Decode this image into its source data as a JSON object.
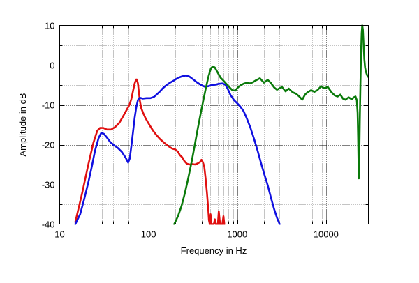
{
  "chart_data": {
    "type": "line",
    "title": "",
    "xlabel": "Frequency in Hz",
    "ylabel": "Amplitude in dB",
    "xscale": "log",
    "xlim": [
      10,
      30000
    ],
    "ylim": [
      -40,
      10
    ],
    "x_ticks": [
      10,
      100,
      1000,
      10000
    ],
    "x_tick_labels": [
      "10",
      "100",
      "1000",
      "10000"
    ],
    "y_ticks": [
      -40,
      -30,
      -20,
      -10,
      0,
      10
    ],
    "y_tick_labels": [
      "-40",
      "-30",
      "-20",
      "-10",
      "0",
      "10"
    ],
    "grid": true,
    "legend": "none",
    "series": [
      {
        "color": "#e01010",
        "points": [
          [
            15,
            -39.5
          ],
          [
            18,
            -32
          ],
          [
            21,
            -25
          ],
          [
            24,
            -19.5
          ],
          [
            26.5,
            -16.5
          ],
          [
            28.5,
            -15.8
          ],
          [
            31,
            -15.8
          ],
          [
            34,
            -16.2
          ],
          [
            38,
            -16.2
          ],
          [
            42,
            -15.6
          ],
          [
            47,
            -14.5
          ],
          [
            52,
            -12.8
          ],
          [
            57,
            -11.2
          ],
          [
            61,
            -10
          ],
          [
            64,
            -8.6
          ],
          [
            67,
            -6.5
          ],
          [
            70,
            -4.6
          ],
          [
            72.5,
            -3.6
          ],
          [
            74,
            -3.6
          ],
          [
            76,
            -4.6
          ],
          [
            78,
            -6.8
          ],
          [
            80,
            -9
          ],
          [
            83,
            -10.8
          ],
          [
            87,
            -12
          ],
          [
            92,
            -13.2
          ],
          [
            98,
            -14.3
          ],
          [
            105,
            -15.4
          ],
          [
            112,
            -16.4
          ],
          [
            122,
            -17.5
          ],
          [
            135,
            -18.6
          ],
          [
            150,
            -19.5
          ],
          [
            168,
            -20.4
          ],
          [
            185,
            -21
          ],
          [
            200,
            -21.2
          ],
          [
            215,
            -21.8
          ],
          [
            225,
            -22.6
          ],
          [
            240,
            -23.2
          ],
          [
            255,
            -24.2
          ],
          [
            270,
            -24.8
          ],
          [
            290,
            -25
          ],
          [
            310,
            -24.9
          ],
          [
            335,
            -25
          ],
          [
            360,
            -24.7
          ],
          [
            380,
            -24.4
          ],
          [
            395,
            -23.8
          ],
          [
            410,
            -24.4
          ],
          [
            425,
            -25.5
          ],
          [
            440,
            -28.5
          ],
          [
            455,
            -32
          ],
          [
            470,
            -36
          ],
          [
            480,
            -39
          ],
          [
            490,
            -40
          ],
          [
            500,
            -37.5
          ],
          [
            510,
            -40
          ],
          [
            545,
            -40
          ],
          [
            560,
            -38.8
          ],
          [
            575,
            -40
          ],
          [
            605,
            -40
          ],
          [
            620,
            -36.8
          ],
          [
            640,
            -40
          ],
          [
            680,
            -40
          ],
          [
            700,
            -38
          ],
          [
            715,
            -40
          ]
        ]
      },
      {
        "color": "#1010e0",
        "points": [
          [
            15,
            -40
          ],
          [
            17,
            -37.5
          ],
          [
            19,
            -33.5
          ],
          [
            21,
            -29.5
          ],
          [
            23,
            -25.5
          ],
          [
            25,
            -21.5
          ],
          [
            27.5,
            -18.3
          ],
          [
            29.5,
            -17
          ],
          [
            31.5,
            -17.3
          ],
          [
            34,
            -18.2
          ],
          [
            37,
            -19.3
          ],
          [
            41,
            -20.2
          ],
          [
            45,
            -20.8
          ],
          [
            50,
            -21.8
          ],
          [
            55,
            -23.2
          ],
          [
            59,
            -24.5
          ],
          [
            61.5,
            -23.5
          ],
          [
            64,
            -20.5
          ],
          [
            67,
            -16.8
          ],
          [
            70,
            -13.2
          ],
          [
            73,
            -10.5
          ],
          [
            76,
            -8.8
          ],
          [
            80,
            -8.2
          ],
          [
            86,
            -8.4
          ],
          [
            95,
            -8.3
          ],
          [
            105,
            -8.3
          ],
          [
            115,
            -8
          ],
          [
            125,
            -7.3
          ],
          [
            135,
            -6.6
          ],
          [
            145,
            -5.8
          ],
          [
            160,
            -5
          ],
          [
            175,
            -4.4
          ],
          [
            195,
            -3.8
          ],
          [
            215,
            -3.2
          ],
          [
            240,
            -2.8
          ],
          [
            265,
            -2.6
          ],
          [
            290,
            -2.9
          ],
          [
            320,
            -3.6
          ],
          [
            350,
            -4.3
          ],
          [
            390,
            -5
          ],
          [
            430,
            -5.4
          ],
          [
            470,
            -5.3
          ],
          [
            520,
            -5
          ],
          [
            570,
            -4.9
          ],
          [
            620,
            -4.7
          ],
          [
            680,
            -4.6
          ],
          [
            730,
            -4.9
          ],
          [
            780,
            -5.9
          ],
          [
            840,
            -7.5
          ],
          [
            920,
            -8.8
          ],
          [
            1000,
            -9.6
          ],
          [
            1080,
            -10.4
          ],
          [
            1180,
            -11.6
          ],
          [
            1280,
            -13.4
          ],
          [
            1400,
            -15.6
          ],
          [
            1550,
            -18.6
          ],
          [
            1700,
            -21.6
          ],
          [
            1850,
            -24.6
          ],
          [
            2000,
            -27.2
          ],
          [
            2200,
            -30.2
          ],
          [
            2400,
            -33.4
          ],
          [
            2600,
            -36.2
          ],
          [
            2800,
            -38.4
          ],
          [
            3000,
            -40
          ]
        ]
      },
      {
        "color": "#0a7a0a",
        "points": [
          [
            195,
            -40
          ],
          [
            215,
            -38
          ],
          [
            235,
            -35.5
          ],
          [
            255,
            -32.5
          ],
          [
            280,
            -28.5
          ],
          [
            305,
            -24.5
          ],
          [
            330,
            -20.5
          ],
          [
            355,
            -16.5
          ],
          [
            385,
            -12.5
          ],
          [
            415,
            -8.8
          ],
          [
            445,
            -5.6
          ],
          [
            475,
            -2.8
          ],
          [
            505,
            -0.8
          ],
          [
            530,
            -0.3
          ],
          [
            560,
            -0.6
          ],
          [
            600,
            -1.8
          ],
          [
            650,
            -3.2
          ],
          [
            700,
            -3.9
          ],
          [
            760,
            -4.8
          ],
          [
            820,
            -5.6
          ],
          [
            880,
            -6.3
          ],
          [
            950,
            -6.4
          ],
          [
            1020,
            -5.6
          ],
          [
            1100,
            -5
          ],
          [
            1200,
            -4.6
          ],
          [
            1300,
            -4.4
          ],
          [
            1400,
            -4.6
          ],
          [
            1500,
            -4.3
          ],
          [
            1600,
            -3.9
          ],
          [
            1700,
            -3.6
          ],
          [
            1800,
            -3.3
          ],
          [
            1900,
            -3.9
          ],
          [
            2000,
            -4.4
          ],
          [
            2200,
            -3.7
          ],
          [
            2400,
            -4.5
          ],
          [
            2600,
            -5.6
          ],
          [
            2800,
            -6.2
          ],
          [
            3000,
            -5.8
          ],
          [
            3200,
            -5.5
          ],
          [
            3500,
            -6.6
          ],
          [
            3800,
            -5.9
          ],
          [
            4200,
            -6.8
          ],
          [
            4600,
            -7.2
          ],
          [
            5000,
            -7.9
          ],
          [
            5400,
            -8.7
          ],
          [
            5800,
            -7.4
          ],
          [
            6200,
            -6.8
          ],
          [
            6800,
            -6.3
          ],
          [
            7400,
            -6.7
          ],
          [
            8000,
            -6.3
          ],
          [
            8800,
            -5.3
          ],
          [
            9500,
            -5.8
          ],
          [
            10500,
            -5.5
          ],
          [
            11500,
            -6.8
          ],
          [
            12500,
            -7.6
          ],
          [
            13500,
            -7.9
          ],
          [
            14500,
            -7.4
          ],
          [
            15500,
            -8.4
          ],
          [
            16500,
            -8.7
          ],
          [
            18000,
            -8.1
          ],
          [
            19500,
            -8.6
          ],
          [
            20500,
            -8.1
          ],
          [
            21500,
            -7.9
          ],
          [
            22200,
            -8.8
          ],
          [
            22700,
            -12
          ],
          [
            23000,
            -18
          ],
          [
            23300,
            -26
          ],
          [
            23500,
            -28.5
          ],
          [
            23700,
            -23
          ],
          [
            24000,
            -14
          ],
          [
            24400,
            -5
          ],
          [
            24800,
            3
          ],
          [
            25200,
            8
          ],
          [
            25600,
            10
          ],
          [
            26000,
            9
          ],
          [
            26500,
            5
          ],
          [
            27000,
            1.5
          ],
          [
            27500,
            -0.5
          ],
          [
            28000,
            -1.5
          ],
          [
            29000,
            -2.5
          ],
          [
            30000,
            -3
          ]
        ]
      }
    ]
  }
}
